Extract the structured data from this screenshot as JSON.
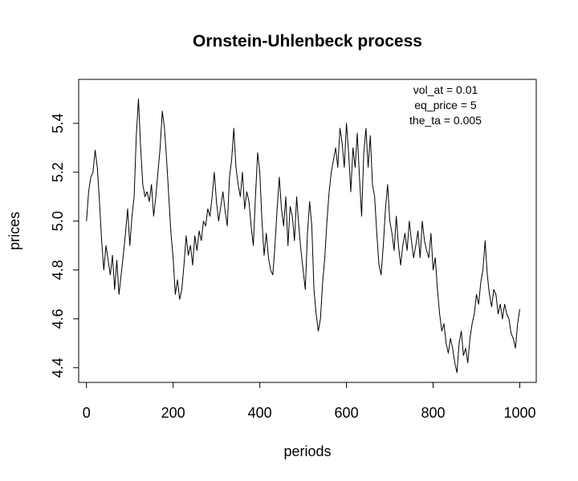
{
  "chart_data": {
    "type": "line",
    "title": "Ornstein-Uhlenbeck process",
    "xlabel": "periods",
    "ylabel": "prices",
    "xlim": [
      -18,
      1038
    ],
    "ylim": [
      4.34,
      5.58
    ],
    "x_ticks": [
      0,
      200,
      400,
      600,
      800,
      1000
    ],
    "x_tick_labels": [
      "0",
      "200",
      "400",
      "600",
      "800",
      "1000"
    ],
    "y_ticks": [
      4.4,
      4.6,
      4.8,
      5.0,
      5.2,
      5.4
    ],
    "y_tick_labels": [
      "4.4",
      "4.6",
      "4.8",
      "5.0",
      "5.2",
      "5.4"
    ],
    "grid": false,
    "legend": "none",
    "annotations": [
      "vol_at = 0.01",
      "eq_price = 5",
      "the_ta = 0.005"
    ],
    "annotation_position": "top-right",
    "line_color": "#000000",
    "series": [
      {
        "x": [
          0,
          5,
          10,
          15,
          20,
          25,
          30,
          35,
          40,
          45,
          50,
          55,
          60,
          65,
          70,
          75,
          80,
          85,
          90,
          95,
          100,
          105,
          110,
          115,
          120,
          125,
          130,
          135,
          140,
          145,
          150,
          155,
          160,
          165,
          170,
          175,
          180,
          185,
          190,
          195,
          200,
          205,
          210,
          215,
          220,
          225,
          230,
          235,
          240,
          245,
          250,
          255,
          260,
          265,
          270,
          275,
          280,
          285,
          290,
          295,
          300,
          305,
          310,
          315,
          320,
          325,
          330,
          335,
          340,
          345,
          350,
          355,
          360,
          365,
          370,
          375,
          380,
          385,
          390,
          395,
          400,
          405,
          410,
          415,
          420,
          425,
          430,
          435,
          440,
          445,
          450,
          455,
          460,
          465,
          470,
          475,
          480,
          485,
          490,
          495,
          500,
          505,
          510,
          515,
          520,
          525,
          530,
          535,
          540,
          545,
          550,
          555,
          560,
          565,
          570,
          575,
          580,
          585,
          590,
          595,
          600,
          605,
          610,
          615,
          620,
          625,
          630,
          635,
          640,
          645,
          650,
          655,
          660,
          665,
          670,
          675,
          680,
          685,
          690,
          695,
          700,
          705,
          710,
          715,
          720,
          725,
          730,
          735,
          740,
          745,
          750,
          755,
          760,
          765,
          770,
          775,
          780,
          785,
          790,
          795,
          800,
          805,
          810,
          815,
          820,
          825,
          830,
          835,
          840,
          845,
          850,
          855,
          860,
          865,
          870,
          875,
          880,
          885,
          890,
          895,
          900,
          905,
          910,
          915,
          920,
          925,
          930,
          935,
          940,
          945,
          950,
          955,
          960,
          965,
          970,
          975,
          980,
          985,
          990,
          995,
          1000
        ],
        "values": [
          5.0,
          5.12,
          5.18,
          5.2,
          5.29,
          5.22,
          5.08,
          4.92,
          4.8,
          4.9,
          4.84,
          4.78,
          4.86,
          4.72,
          4.84,
          4.7,
          4.78,
          4.86,
          4.95,
          5.05,
          4.9,
          5.02,
          5.1,
          5.35,
          5.5,
          5.3,
          5.15,
          5.1,
          5.12,
          5.08,
          5.15,
          5.02,
          5.1,
          5.2,
          5.3,
          5.45,
          5.38,
          5.25,
          5.1,
          4.95,
          4.85,
          4.7,
          4.76,
          4.68,
          4.72,
          4.82,
          4.94,
          4.86,
          4.9,
          4.82,
          4.94,
          4.88,
          4.96,
          4.92,
          5.0,
          4.98,
          5.05,
          5.02,
          5.1,
          5.2,
          5.08,
          5.0,
          5.06,
          5.12,
          5.04,
          4.98,
          5.18,
          5.25,
          5.38,
          5.22,
          5.15,
          5.1,
          5.2,
          5.05,
          5.12,
          5.08,
          4.98,
          4.9,
          5.1,
          5.28,
          5.2,
          5.0,
          4.86,
          4.95,
          4.85,
          4.8,
          4.78,
          4.9,
          5.05,
          5.18,
          5.05,
          4.98,
          5.1,
          4.9,
          5.06,
          5.02,
          4.92,
          5.1,
          4.98,
          4.88,
          4.8,
          4.72,
          4.95,
          5.08,
          4.98,
          4.72,
          4.62,
          4.55,
          4.6,
          4.75,
          4.85,
          5.0,
          5.12,
          5.2,
          5.25,
          5.3,
          5.22,
          5.38,
          5.32,
          5.22,
          5.4,
          5.28,
          5.12,
          5.3,
          5.22,
          5.36,
          5.18,
          5.02,
          5.28,
          5.38,
          5.22,
          5.35,
          5.15,
          5.1,
          4.95,
          4.82,
          4.78,
          4.9,
          5.05,
          5.15,
          5.0,
          4.95,
          4.88,
          5.02,
          4.9,
          4.82,
          4.9,
          4.95,
          4.88,
          5.0,
          4.92,
          4.85,
          4.9,
          4.96,
          4.85,
          5.0,
          4.92,
          4.88,
          4.85,
          4.95,
          4.8,
          4.85,
          4.72,
          4.62,
          4.55,
          4.58,
          4.5,
          4.46,
          4.52,
          4.48,
          4.42,
          4.38,
          4.5,
          4.55,
          4.45,
          4.48,
          4.42,
          4.52,
          4.58,
          4.62,
          4.7,
          4.66,
          4.75,
          4.8,
          4.92,
          4.78,
          4.7,
          4.65,
          4.72,
          4.7,
          4.62,
          4.66,
          4.6,
          4.66,
          4.62,
          4.6,
          4.54,
          4.52,
          4.48,
          4.58,
          4.64
        ]
      }
    ]
  }
}
